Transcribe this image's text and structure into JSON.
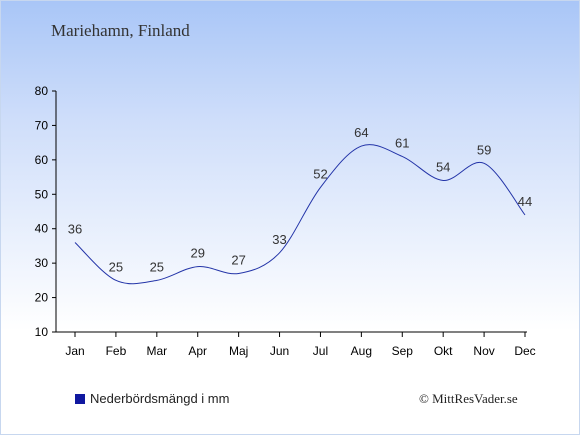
{
  "chart_data": {
    "type": "line",
    "title": "Mariehamn, Finland",
    "categories": [
      "Jan",
      "Feb",
      "Mar",
      "Apr",
      "Maj",
      "Jun",
      "Jul",
      "Aug",
      "Sep",
      "Okt",
      "Nov",
      "Dec"
    ],
    "series": [
      {
        "name": "Nederbördsmängd i mm",
        "values": [
          36,
          25,
          25,
          29,
          27,
          33,
          52,
          64,
          61,
          54,
          59,
          44
        ],
        "color": "#2334a8"
      }
    ],
    "ylim": [
      10,
      80
    ],
    "yticks": [
      10,
      20,
      30,
      40,
      50,
      60,
      70,
      80
    ],
    "grid": false,
    "legend_position": "bottom-left"
  },
  "copyright": "© MittResVader.se",
  "colors": {
    "line": "#2334a8",
    "legend_swatch": "#1018a0",
    "background_top": "#a9c6f7",
    "background_bottom": "#ffffff"
  }
}
